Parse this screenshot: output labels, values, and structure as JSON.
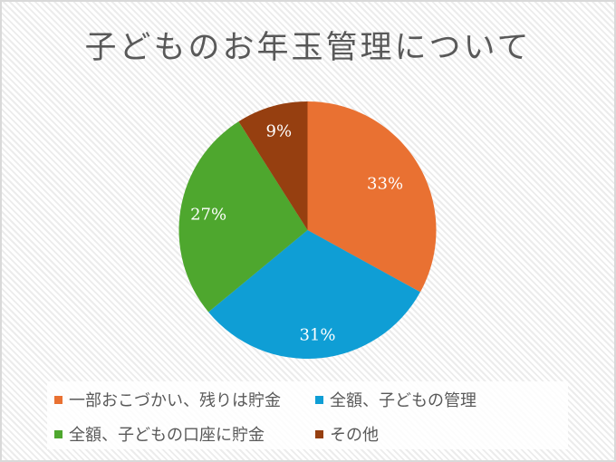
{
  "title": "子どものお年玉管理について",
  "chart_data": {
    "type": "pie",
    "title": "子どものお年玉管理について",
    "categories": [
      "一部おこづかい、残りは貯金",
      "全額、子どもの管理",
      "全額、子どもの口座に貯金",
      "その他"
    ],
    "values": [
      33,
      31,
      27,
      9
    ],
    "labels": [
      "33%",
      "31%",
      "27%",
      "9%"
    ],
    "colors": [
      "#E97132",
      "#0F9ED5",
      "#4EA72E",
      "#963F10"
    ],
    "start_angle": "12 o'clock, clockwise",
    "legend_position": "bottom"
  },
  "legend": [
    {
      "label": "一部おこづかい、残りは貯金",
      "color": "#E97132"
    },
    {
      "label": "全額、子どもの管理",
      "color": "#0F9ED5"
    },
    {
      "label": "全額、子どもの口座に貯金",
      "color": "#4EA72E"
    },
    {
      "label": "その他",
      "color": "#963F10"
    }
  ]
}
